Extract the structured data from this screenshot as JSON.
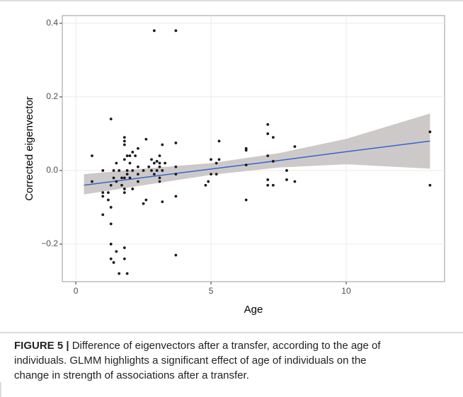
{
  "chart_data": {
    "type": "scatter",
    "xlabel": "Age",
    "ylabel": "Corrected eigenvector",
    "xlim": [
      -0.5,
      13.64
    ],
    "ylim": [
      -0.302,
      0.421
    ],
    "xticks": [
      0,
      5,
      10
    ],
    "yticks": [
      {
        "value": -0.2,
        "label": "−0.2"
      },
      {
        "value": 0,
        "label": "0.0"
      },
      0.2,
      0.4
    ],
    "grid": true,
    "color": "#1a1a1a",
    "x": [
      0.6,
      0.6,
      1.0,
      1.0,
      1.0,
      1.0,
      1.2,
      1.2,
      1.3,
      1.3,
      1.3,
      1.3,
      1.3,
      1.3,
      1.4,
      1.4,
      1.4,
      1.5,
      1.5,
      1.5,
      1.6,
      1.6,
      1.7,
      1.7,
      1.8,
      1.8,
      1.8,
      1.8,
      1.8,
      1.8,
      1.8,
      1.8,
      1.8,
      1.9,
      1.9,
      1.9,
      1.9,
      2.0,
      2.0,
      2.0,
      2.1,
      2.1,
      2.1,
      2.2,
      2.3,
      2.3,
      2.3,
      2.3,
      2.5,
      2.5,
      2.6,
      2.6,
      2.7,
      2.8,
      2.8,
      2.9,
      2.9,
      2.9,
      3.0,
      3.0,
      3.1,
      3.1,
      3.1,
      3.1,
      3.1,
      3.2,
      3.2,
      3.2,
      3.3,
      3.7,
      3.7,
      3.7,
      3.7,
      3.7,
      3.7,
      4.8,
      4.9,
      5.0,
      5.0,
      5.2,
      5.3,
      5.3,
      5.2,
      6.3,
      6.3,
      6.3,
      6.3,
      7.1,
      7.1,
      7.1,
      7.1,
      7.1,
      7.3,
      7.3,
      7.3,
      7.8,
      7.8,
      8.1,
      8.1,
      13.1,
      13.1
    ],
    "values": [
      0.04,
      -0.03,
      0,
      -0.06,
      -0.07,
      -0.12,
      -0.06,
      -0.08,
      -0.04,
      -0.1,
      -0.145,
      -0.2,
      -0.24,
      0.14,
      0,
      -0.02,
      -0.25,
      0.02,
      -0.03,
      -0.22,
      0,
      -0.28,
      -0.02,
      -0.04,
      0.09,
      0.08,
      0.07,
      0.03,
      -0.02,
      -0.05,
      -0.06,
      -0.21,
      -0.24,
      0.04,
      0,
      -0.01,
      -0.28,
      0.04,
      0.02,
      -0.02,
      0.05,
      0,
      -0.05,
      0.04,
      0.06,
      0.01,
      -0.01,
      -0.03,
      0,
      -0.09,
      0.085,
      -0.08,
      0.01,
      0.03,
      0,
      0.38,
      0.02,
      -0.01,
      0.025,
      0,
      0.04,
      0.02,
      0.01,
      -0.02,
      -0.03,
      0.07,
      0,
      -0.085,
      0.02,
      0.38,
      0.075,
      0.01,
      -0.01,
      -0.07,
      -0.23,
      -0.04,
      -0.03,
      0.03,
      -0.01,
      0.02,
      0.08,
      0.03,
      -0.01,
      0.06,
      0.055,
      0.015,
      -0.08,
      0.125,
      0.1,
      0.04,
      -0.025,
      -0.04,
      0.09,
      0.025,
      -0.04,
      0,
      -0.025,
      0.065,
      -0.03,
      0.105,
      -0.04
    ],
    "fit": {
      "color": "#3366cc",
      "band_color": "#c9c3c3",
      "x": [
        0.3,
        2.5,
        5,
        7.5,
        10,
        13.1
      ],
      "values": [
        -0.04,
        -0.019,
        0.004,
        0.027,
        0.051,
        0.08
      ],
      "upper": [
        -0.01,
        0.005,
        0.02,
        0.047,
        0.086,
        0.155
      ],
      "lower": [
        -0.065,
        -0.04,
        -0.012,
        0.008,
        0.017,
        0.005
      ]
    }
  },
  "caption": {
    "label": "FIGURE 5 |",
    "lines": [
      "Difference of eigenvectors after a transfer, according to the age of",
      "individuals. GLMM highlights a significant effect of age of individuals on the",
      "change in strength of associations after a transfer."
    ]
  }
}
